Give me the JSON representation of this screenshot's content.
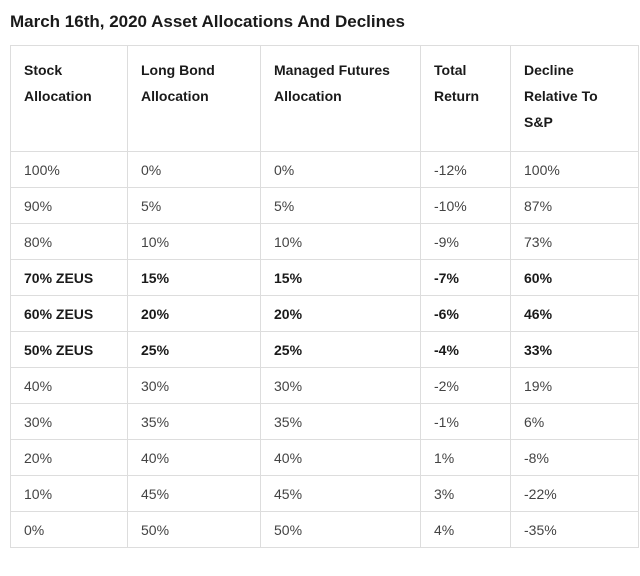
{
  "chart_data": {
    "type": "table",
    "title": "March 16th, 2020 Asset Allocations And Declines",
    "columns": [
      "Stock Allocation",
      "Long Bond Allocation",
      "Managed Futures Allocation",
      "Total Return",
      "Decline Relative To S&P"
    ],
    "rows": [
      [
        "100%",
        "0%",
        "0%",
        "-12%",
        "100%"
      ],
      [
        "90%",
        "5%",
        "5%",
        "-10%",
        "87%"
      ],
      [
        "80%",
        "10%",
        "10%",
        "-9%",
        "73%"
      ],
      [
        "70% ZEUS",
        "15%",
        "15%",
        "-7%",
        "60%"
      ],
      [
        "60% ZEUS",
        "20%",
        "20%",
        "-6%",
        "46%"
      ],
      [
        "50% ZEUS",
        "25%",
        "25%",
        "-4%",
        "33%"
      ],
      [
        "40%",
        "30%",
        "30%",
        "-2%",
        "19%"
      ],
      [
        "30%",
        "35%",
        "35%",
        "-1%",
        "6%"
      ],
      [
        "20%",
        "40%",
        "40%",
        "1%",
        "-8%"
      ],
      [
        "10%",
        "45%",
        "45%",
        "3%",
        "-22%"
      ],
      [
        "0%",
        "50%",
        "50%",
        "4%",
        "-35%"
      ]
    ],
    "bold_rows": [
      3,
      4,
      5
    ],
    "colors": {
      "title_text": "#1a1a1a",
      "header_text": "#1a1a1a",
      "cell_text": "#434343",
      "emphasis_text": "#1a1a1a",
      "border": "#dddddd",
      "background": "#ffffff"
    }
  }
}
